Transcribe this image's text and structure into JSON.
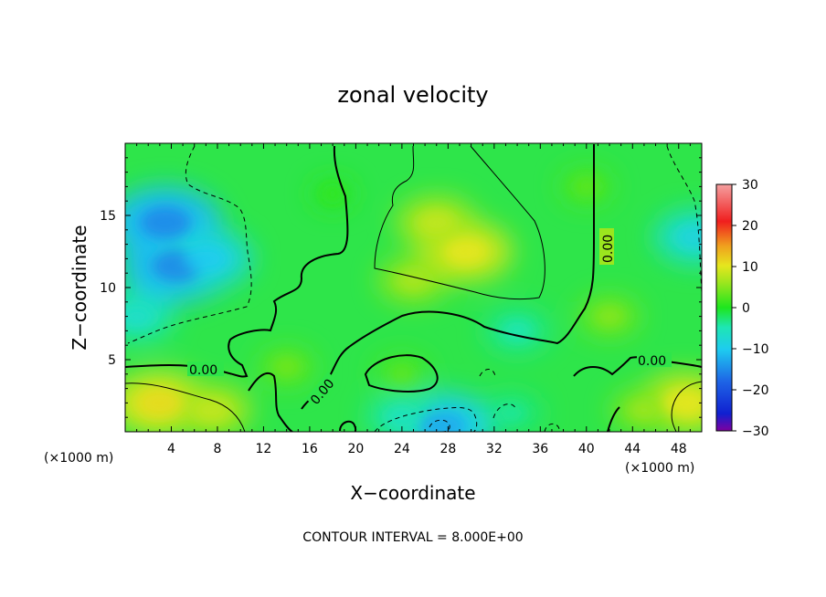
{
  "chart_data": {
    "type": "heatmap",
    "title": "zonal velocity",
    "xlabel": "X−coordinate",
    "ylabel": "Z−coordinate",
    "x_unit_left": "(×1000 m)",
    "x_unit_right": "(×1000 m)",
    "footer": "CONTOUR INTERVAL = 8.000E+00",
    "xlim": [
      0,
      50
    ],
    "ylim": [
      0,
      20
    ],
    "x_ticks": [
      4,
      8,
      12,
      16,
      20,
      24,
      28,
      32,
      36,
      40,
      44,
      48
    ],
    "y_ticks": [
      5,
      10,
      15
    ],
    "colorbar": {
      "min": -30,
      "max": 30,
      "ticks": [
        -30,
        -20,
        -10,
        0,
        10,
        20,
        30
      ],
      "colors": [
        "#7f00a0",
        "#1020d0",
        "#1e64e6",
        "#1ecbf0",
        "#1ee6b4",
        "#1ee61e",
        "#9be61e",
        "#e6e61e",
        "#f0a01e",
        "#f01e1e",
        "#f5a0a0"
      ]
    },
    "contour_labels": [
      "0.00",
      "0.00",
      "0.00",
      "0.00"
    ],
    "features": [
      {
        "x": 3.5,
        "z": 14.5,
        "value": -16
      },
      {
        "x": 4.5,
        "z": 11.5,
        "value": -16
      },
      {
        "x": 7.0,
        "z": 12.0,
        "value": -12
      },
      {
        "x": 1.0,
        "z": 8.0,
        "value": -8
      },
      {
        "x": 49.5,
        "z": 13.5,
        "value": -10
      },
      {
        "x": 29.5,
        "z": 12.5,
        "value": 12
      },
      {
        "x": 27.0,
        "z": 14.5,
        "value": 9
      },
      {
        "x": 25.0,
        "z": 10.5,
        "value": 7
      },
      {
        "x": 3.0,
        "z": 2.0,
        "value": 13
      },
      {
        "x": 7.5,
        "z": 1.5,
        "value": 9
      },
      {
        "x": 48.5,
        "z": 2.0,
        "value": 12
      },
      {
        "x": 45.0,
        "z": 1.5,
        "value": 6
      },
      {
        "x": 27.5,
        "z": 0.4,
        "value": -14
      },
      {
        "x": 24.0,
        "z": 1.0,
        "value": -7
      },
      {
        "x": 33.5,
        "z": 1.3,
        "value": -5
      },
      {
        "x": 34.0,
        "z": 7.0,
        "value": -6
      },
      {
        "x": 14.0,
        "z": 4.5,
        "value": 4
      },
      {
        "x": 24.0,
        "z": 4.0,
        "value": 3
      },
      {
        "x": 40.0,
        "z": 17.0,
        "value": 3
      },
      {
        "x": 18.0,
        "z": 16.5,
        "value": 1
      },
      {
        "x": 42.0,
        "z": 8.0,
        "value": 5
      }
    ]
  }
}
